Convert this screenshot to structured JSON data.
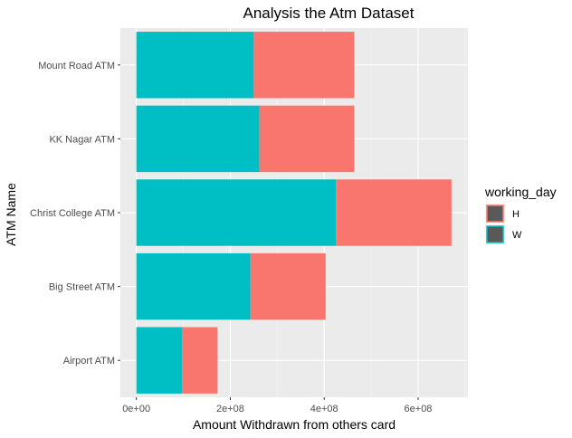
{
  "chart_data": {
    "type": "bar",
    "orientation": "horizontal",
    "stacked": true,
    "title": "Analysis the Atm Dataset",
    "xlabel": "Amount Withdrawn from others card",
    "ylabel": "ATM Name",
    "categories": [
      "Mount Road ATM",
      "KK Nagar ATM",
      "Christ College ATM",
      "Big Street ATM",
      "Airport ATM"
    ],
    "series": [
      {
        "name": "W",
        "color": "#00BFC4",
        "values": [
          250000000,
          262000000,
          425000000,
          243000000,
          97000000
        ]
      },
      {
        "name": "H",
        "color": "#F8766D",
        "values": [
          214000000,
          202000000,
          246000000,
          160000000,
          76000000
        ]
      }
    ],
    "xticks": [
      0,
      200000000,
      400000000,
      600000000
    ],
    "xtick_labels": [
      "0e+00",
      "2e+08",
      "4e+08",
      "6e+08"
    ],
    "xlim": [
      -34000000,
      706000000
    ],
    "legend": {
      "title": "working_day",
      "position": "right",
      "items": [
        {
          "label": "H",
          "color": "#F8766D"
        },
        {
          "label": "W",
          "color": "#00BFC4"
        }
      ]
    },
    "grid": true,
    "panel_background": "#EBEBEB"
  }
}
